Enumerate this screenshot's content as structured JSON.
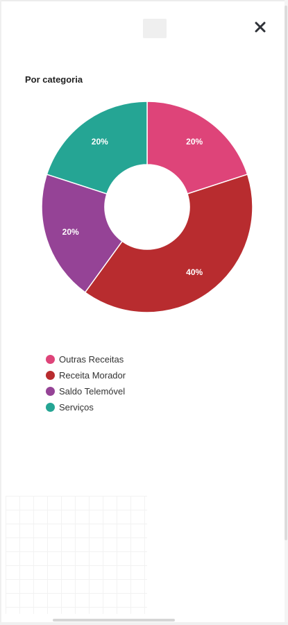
{
  "header": {
    "close_icon": "close-icon"
  },
  "chart_data": {
    "type": "pie",
    "title": "Por categoria",
    "donut": true,
    "categories": [
      "Outras Receitas",
      "Receita Morador",
      "Saldo Telemóvel",
      "Serviços"
    ],
    "values": [
      20,
      40,
      20,
      20
    ],
    "value_labels": [
      "20%",
      "40%",
      "20%",
      "20%"
    ],
    "colors": [
      "#de4479",
      "#b82c2f",
      "#954396",
      "#25a594"
    ],
    "legend_position": "bottom-left"
  }
}
